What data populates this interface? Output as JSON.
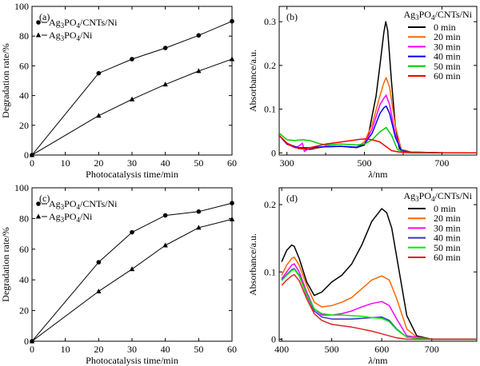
{
  "chart_data": [
    {
      "id": "a",
      "type": "line",
      "panel_label": "(a)",
      "xlabel": "Photocatalysis time/min",
      "ylabel": "Degradation rate/%",
      "xlim": [
        0,
        60
      ],
      "ylim": [
        0,
        100
      ],
      "xticks": [
        0,
        10,
        20,
        30,
        40,
        50,
        60
      ],
      "yticks": [
        0,
        20,
        40,
        60,
        80,
        100
      ],
      "legend_position": "top-left",
      "series": [
        {
          "name": "Ag3PO4/CNTs/Ni",
          "legend_main": "Ag",
          "legend_parts": [
            "3",
            "PO",
            "4",
            "/CNTs/Ni"
          ],
          "marker": "circle",
          "x": [
            0,
            20,
            30,
            40,
            50,
            60
          ],
          "values": [
            0,
            55,
            64.5,
            72,
            80.5,
            90
          ]
        },
        {
          "name": "Ag3PO4/Ni",
          "legend_main": "Ag",
          "legend_parts": [
            "3",
            "PO",
            "4",
            "/Ni"
          ],
          "marker": "triangle",
          "x": [
            0,
            20,
            30,
            40,
            50,
            60
          ],
          "values": [
            0,
            26.5,
            37.5,
            47.5,
            56.5,
            64.5
          ]
        }
      ]
    },
    {
      "id": "b",
      "type": "line",
      "panel_label": "(b)",
      "xlabel_italic": "λ",
      "xlabel_rest": "/nm",
      "ylabel": "Absorbance/a.u.",
      "xlim": [
        280,
        790
      ],
      "ylim": [
        -0.005,
        0.335
      ],
      "xticks": [
        300,
        500,
        700
      ],
      "xticks_minor": [
        400,
        600
      ],
      "yticks": [
        0,
        0.1,
        0.2,
        0.3
      ],
      "ytick_labels": [
        "0",
        "0.1",
        "0.2",
        "0.3"
      ],
      "legend_title": "Ag3PO4/CNTs/Ni",
      "legend_title_parts": [
        "Ag",
        "3",
        "PO",
        "4",
        "/CNTs/Ni"
      ],
      "legend_position": "top-right",
      "series": [
        {
          "name": "0 min",
          "color": "#000000",
          "x": [
            280,
            300,
            330,
            360,
            400,
            440,
            480,
            500,
            510,
            520,
            530,
            540,
            550,
            555,
            560,
            570,
            580,
            590,
            610,
            650,
            700,
            790
          ],
          "values": [
            0.04,
            0.022,
            0.01,
            0.008,
            0.015,
            0.015,
            0.012,
            0.018,
            0.04,
            0.085,
            0.13,
            0.2,
            0.275,
            0.3,
            0.28,
            0.16,
            0.06,
            0.01,
            0.002,
            0,
            0,
            0
          ]
        },
        {
          "name": "20 min",
          "color": "#ff6600",
          "x": [
            280,
            300,
            330,
            360,
            400,
            440,
            480,
            500,
            520,
            540,
            550,
            556,
            565,
            580,
            595,
            620,
            700,
            790
          ],
          "values": [
            0.04,
            0.02,
            0.012,
            0.01,
            0.014,
            0.015,
            0.013,
            0.025,
            0.065,
            0.13,
            0.16,
            0.172,
            0.15,
            0.06,
            0.008,
            0.002,
            0,
            0
          ]
        },
        {
          "name": "30 min",
          "color": "#ff00ff",
          "x": [
            280,
            300,
            320,
            330,
            340,
            345,
            360,
            400,
            440,
            480,
            500,
            520,
            540,
            550,
            556,
            565,
            580,
            595,
            620,
            700,
            790
          ],
          "values": [
            0.04,
            0.02,
            0.012,
            0.015,
            0.022,
            0.003,
            0.012,
            0.014,
            0.015,
            0.013,
            0.02,
            0.055,
            0.11,
            0.125,
            0.132,
            0.11,
            0.04,
            0.005,
            0.002,
            0,
            0
          ]
        },
        {
          "name": "40 min",
          "color": "#0000ff",
          "x": [
            280,
            300,
            330,
            360,
            400,
            440,
            480,
            500,
            520,
            540,
            550,
            556,
            565,
            580,
            595,
            620,
            700,
            790
          ],
          "values": [
            0.04,
            0.02,
            0.012,
            0.012,
            0.014,
            0.015,
            0.013,
            0.02,
            0.045,
            0.09,
            0.103,
            0.107,
            0.09,
            0.035,
            0.005,
            0.002,
            0,
            0
          ]
        },
        {
          "name": "50 min",
          "color": "#00cc00",
          "x": [
            280,
            300,
            320,
            340,
            360,
            380,
            400,
            440,
            480,
            500,
            520,
            540,
            556,
            570,
            585,
            600,
            700,
            790
          ],
          "values": [
            0.045,
            0.03,
            0.028,
            0.03,
            0.028,
            0.022,
            0.018,
            0.02,
            0.018,
            0.02,
            0.03,
            0.048,
            0.058,
            0.04,
            0.008,
            0.002,
            0,
            0
          ]
        },
        {
          "name": "60 min",
          "color": "#ff0000",
          "x": [
            280,
            300,
            320,
            340,
            360,
            400,
            440,
            480,
            500,
            520,
            540,
            555,
            570,
            590,
            620,
            700,
            790
          ],
          "values": [
            0.04,
            0.022,
            0.012,
            0.01,
            0.012,
            0.02,
            0.025,
            0.03,
            0.032,
            0.03,
            0.025,
            0.015,
            0.005,
            0.002,
            0,
            0,
            0
          ]
        }
      ]
    },
    {
      "id": "c",
      "type": "line",
      "panel_label": "(c)",
      "xlabel": "Photocatalysis time/min",
      "ylabel": "Degradation rate/%",
      "xlim": [
        0,
        60
      ],
      "ylim": [
        0,
        100
      ],
      "xticks": [
        0,
        10,
        20,
        30,
        40,
        50,
        60
      ],
      "yticks": [
        0,
        20,
        40,
        60,
        80,
        100
      ],
      "legend_position": "top-left",
      "series": [
        {
          "name": "Ag3PO4/CNTs/Ni",
          "legend_main": "Ag",
          "legend_parts": [
            "3",
            "PO",
            "4",
            "/CNTs/Ni"
          ],
          "marker": "circle",
          "x": [
            0,
            20,
            30,
            40,
            50,
            60
          ],
          "values": [
            0,
            51.5,
            71,
            82,
            84.5,
            90
          ]
        },
        {
          "name": "Ag3PO4/Ni",
          "legend_main": "Ag",
          "legend_parts": [
            "3",
            "PO",
            "4",
            "/Ni"
          ],
          "marker": "triangle",
          "x": [
            0,
            20,
            30,
            40,
            50,
            60
          ],
          "values": [
            0,
            32.5,
            47,
            62.5,
            74,
            79.5
          ]
        }
      ]
    },
    {
      "id": "d",
      "type": "line",
      "panel_label": "(d)",
      "xlabel_italic": "λ",
      "xlabel_rest": "/nm",
      "ylabel": "Absorbance/a.u.",
      "xlim": [
        395,
        790
      ],
      "ylim": [
        -0.003,
        0.225
      ],
      "xticks": [
        400,
        500,
        600,
        700
      ],
      "yticks": [
        0,
        0.1,
        0.2
      ],
      "ytick_labels": [
        "0",
        "0.1",
        "0.2"
      ],
      "legend_title": "Ag3PO4/CNTs/Ni",
      "legend_title_parts": [
        "Ag",
        "3",
        "PO",
        "4",
        "/CNTs/Ni"
      ],
      "legend_position": "top-right",
      "series": [
        {
          "name": "0 min",
          "color": "#000000",
          "x": [
            400,
            410,
            420,
            425,
            435,
            450,
            465,
            480,
            500,
            520,
            540,
            560,
            580,
            600,
            610,
            620,
            635,
            650,
            670,
            700,
            790
          ],
          "values": [
            0.115,
            0.132,
            0.14,
            0.138,
            0.12,
            0.085,
            0.065,
            0.07,
            0.085,
            0.095,
            0.112,
            0.14,
            0.175,
            0.194,
            0.188,
            0.165,
            0.1,
            0.035,
            0.005,
            0,
            0
          ]
        },
        {
          "name": "20 min",
          "color": "#ff6600",
          "x": [
            400,
            410,
            420,
            425,
            435,
            450,
            465,
            480,
            500,
            520,
            540,
            560,
            580,
            600,
            615,
            630,
            650,
            670,
            700,
            790
          ],
          "values": [
            0.095,
            0.11,
            0.12,
            0.122,
            0.11,
            0.08,
            0.055,
            0.048,
            0.05,
            0.055,
            0.062,
            0.075,
            0.088,
            0.094,
            0.088,
            0.06,
            0.015,
            0.003,
            0,
            0
          ]
        },
        {
          "name": "30 min",
          "color": "#ff00ff",
          "x": [
            400,
            410,
            420,
            425,
            435,
            450,
            465,
            480,
            500,
            520,
            540,
            560,
            580,
            600,
            615,
            630,
            650,
            700,
            790
          ],
          "values": [
            0.09,
            0.1,
            0.11,
            0.112,
            0.1,
            0.07,
            0.045,
            0.036,
            0.036,
            0.038,
            0.042,
            0.048,
            0.053,
            0.056,
            0.05,
            0.03,
            0.005,
            0,
            0
          ]
        },
        {
          "name": "40 min",
          "color": "#3333cc",
          "x": [
            400,
            410,
            420,
            425,
            435,
            450,
            465,
            480,
            500,
            520,
            540,
            560,
            580,
            600,
            615,
            630,
            650,
            700,
            790
          ],
          "values": [
            0.088,
            0.096,
            0.103,
            0.105,
            0.095,
            0.065,
            0.042,
            0.033,
            0.03,
            0.03,
            0.03,
            0.031,
            0.032,
            0.033,
            0.028,
            0.015,
            0.003,
            0,
            0
          ]
        },
        {
          "name": "50 min",
          "color": "#00ee00",
          "x": [
            400,
            410,
            420,
            425,
            435,
            450,
            465,
            480,
            500,
            520,
            540,
            560,
            580,
            600,
            615,
            630,
            650,
            700,
            790
          ],
          "values": [
            0.087,
            0.095,
            0.102,
            0.104,
            0.094,
            0.066,
            0.045,
            0.038,
            0.036,
            0.036,
            0.035,
            0.034,
            0.032,
            0.031,
            0.026,
            0.014,
            0.003,
            0,
            0
          ]
        },
        {
          "name": "60 min",
          "color": "#dd2222",
          "x": [
            400,
            410,
            420,
            425,
            435,
            450,
            465,
            480,
            500,
            520,
            540,
            560,
            580,
            600,
            615,
            630,
            650,
            700,
            790
          ],
          "values": [
            0.08,
            0.088,
            0.094,
            0.096,
            0.087,
            0.06,
            0.038,
            0.028,
            0.022,
            0.02,
            0.018,
            0.015,
            0.012,
            0.008,
            0.005,
            0.002,
            0,
            0,
            0
          ]
        }
      ]
    }
  ]
}
